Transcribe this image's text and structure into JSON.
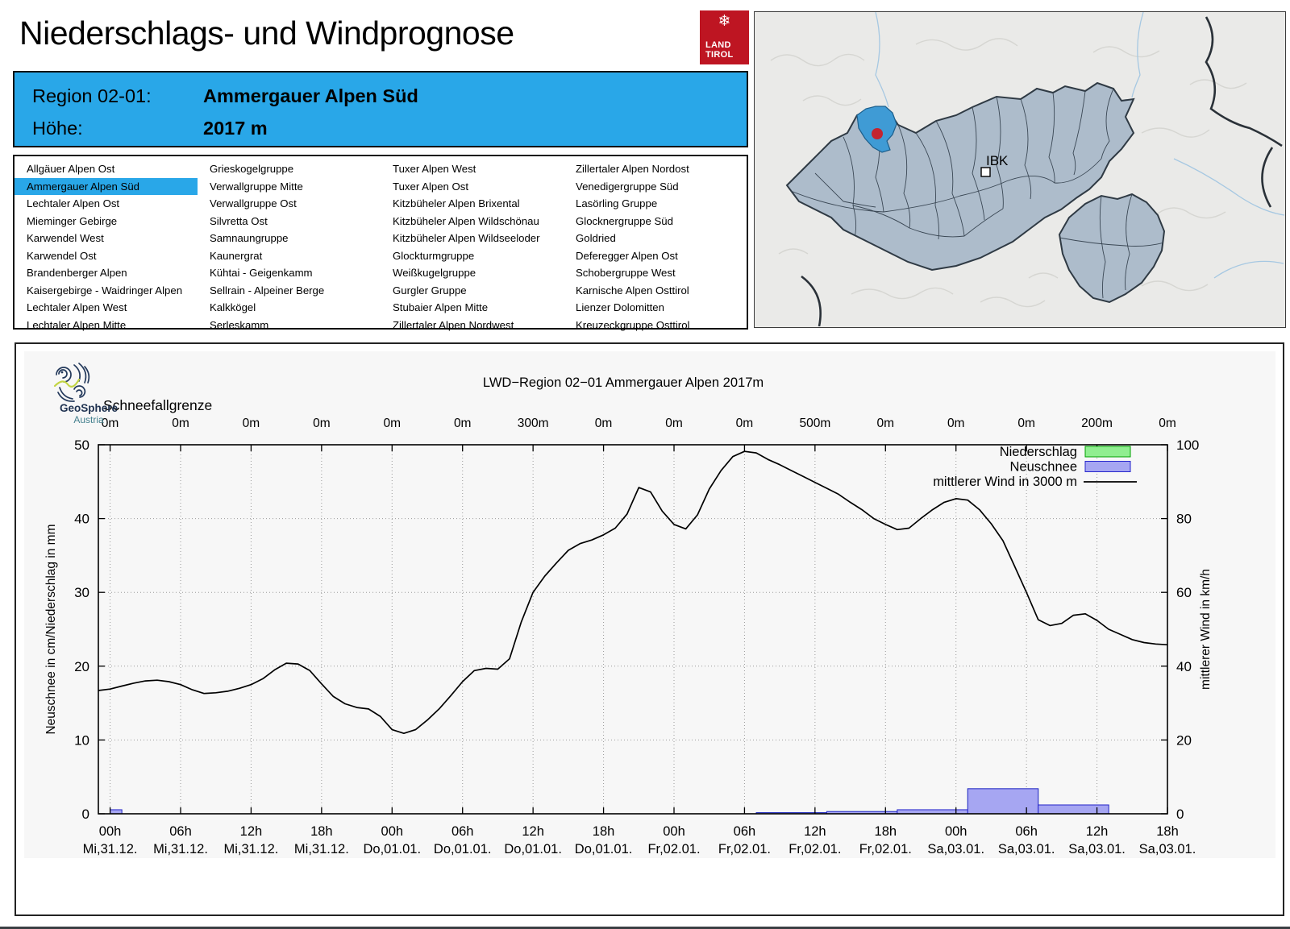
{
  "page": {
    "title": "Niederschlags- und Windprognose"
  },
  "land_tirol_logo": {
    "line1": "LAND",
    "line2": "TIROL",
    "flake": "❄",
    "color": "#be1522"
  },
  "header": {
    "region_label": "Region 02-01:",
    "region_value": "Ammergauer Alpen Süd",
    "altitude_label": "Höhe:",
    "altitude_value": "2017 m",
    "accent_color": "#29a7e8"
  },
  "map": {
    "city_label": "IBK",
    "highlight_color": "#3f9bd5",
    "marker_color": "#c42430"
  },
  "geosphere_logo": {
    "name": "GeoSphere",
    "sub": "Austria"
  },
  "region_list": {
    "selected": "Ammergauer Alpen Süd",
    "columns": [
      [
        "Allgäuer Alpen Ost",
        "Ammergauer Alpen Süd",
        "Lechtaler Alpen Ost",
        "Mieminger Gebirge",
        "Karwendel West",
        "Karwendel Ost",
        "Brandenberger Alpen",
        "Kaisergebirge - Waidringer Alpen",
        "Lechtaler Alpen West",
        "Lechtaler Alpen Mitte"
      ],
      [
        "Grieskogelgruppe",
        "Verwallgruppe Mitte",
        "Verwallgruppe Ost",
        "Silvretta Ost",
        "Samnaungruppe",
        "Kaunergrat",
        "Kühtai - Geigenkamm",
        "Sellrain - Alpeiner Berge",
        "Kalkkögel",
        "Serleskamm"
      ],
      [
        "Tuxer Alpen West",
        "Tuxer Alpen Ost",
        "Kitzbüheler Alpen Brixental",
        "Kitzbüheler Alpen Wildschönau",
        "Kitzbüheler Alpen Wildseeloder",
        "Glockturmgruppe",
        "Weißkugelgruppe",
        "Gurgler Gruppe",
        "Stubaier Alpen Mitte",
        "Zillertaler Alpen Nordwest"
      ],
      [
        "Zillertaler Alpen Nordost",
        "Venedigergruppe Süd",
        "Lasörling Gruppe",
        "Glocknergruppe Süd",
        "Goldried",
        "Deferegger Alpen Ost",
        "Schobergruppe West",
        "Karnische Alpen Osttirol",
        "Lienzer Dolomitten",
        "Kreuzeckgruppe Osttirol"
      ]
    ]
  },
  "chart_data": {
    "type": "composite",
    "title": "LWD−Region 02−01 Ammergauer Alpen 2017m",
    "top_axis": {
      "label": "Schneefallgrenze",
      "tick_labels": [
        "0m",
        "0m",
        "0m",
        "0m",
        "0m",
        "0m",
        "300m",
        "0m",
        "0m",
        "0m",
        "500m",
        "0m",
        "0m",
        "0m",
        "200m",
        "0m"
      ]
    },
    "x_axis": {
      "hour_labels": [
        "00h",
        "06h",
        "12h",
        "18h",
        "00h",
        "06h",
        "12h",
        "18h",
        "00h",
        "06h",
        "12h",
        "18h",
        "00h",
        "06h",
        "12h",
        "18h"
      ],
      "date_labels": [
        "Mi,31.12.",
        "Mi,31.12.",
        "Mi,31.12.",
        "Mi,31.12.",
        "Do,01.01.",
        "Do,01.01.",
        "Do,01.01.",
        "Do,01.01.",
        "Fr,02.01.",
        "Fr,02.01.",
        "Fr,02.01.",
        "Fr,02.01.",
        "Sa,03.01.",
        "Sa,03.01.",
        "Sa,03.01.",
        "Sa,03.01."
      ],
      "tick_hours": [
        0,
        6,
        12,
        18,
        24,
        30,
        36,
        42,
        48,
        54,
        60,
        66,
        72,
        78,
        84,
        90
      ]
    },
    "x_domain_hours": [
      -1,
      90
    ],
    "y_left": {
      "label": "Neuschnee in cm/Niederschlag in mm",
      "min": 0,
      "max": 50,
      "ticks": [
        0,
        10,
        20,
        30,
        40,
        50
      ]
    },
    "y_right": {
      "label": "mittlerer Wind in km/h",
      "min": 0,
      "max": 100,
      "ticks": [
        0,
        20,
        40,
        60,
        80,
        100
      ]
    },
    "legend": [
      {
        "label": "Niederschlag",
        "type": "box",
        "fill": "#90ee90",
        "stroke": "#00a000"
      },
      {
        "label": "Neuschnee",
        "type": "box",
        "fill": "#a6a6f2",
        "stroke": "#2525cc"
      },
      {
        "label": "mittlerer Wind in 3000 m",
        "type": "line",
        "stroke": "#000000"
      }
    ],
    "niederschlag_mm_segments": [
      {
        "from": 0,
        "to": 1,
        "value": 0.55
      },
      {
        "from": 55,
        "to": 61,
        "value": 0.15
      },
      {
        "from": 61,
        "to": 67,
        "value": 0.3
      },
      {
        "from": 67,
        "to": 73,
        "value": 0.55
      },
      {
        "from": 73,
        "to": 79,
        "value": 3.4
      },
      {
        "from": 79,
        "to": 85,
        "value": 1.2
      }
    ],
    "neuschnee_cm_segments": [
      {
        "from": 0,
        "to": 1,
        "value": 0.55
      },
      {
        "from": 55,
        "to": 61,
        "value": 0.15
      },
      {
        "from": 61,
        "to": 67,
        "value": 0.3
      },
      {
        "from": 67,
        "to": 73,
        "value": 0.55
      },
      {
        "from": 73,
        "to": 79,
        "value": 3.4
      },
      {
        "from": 79,
        "to": 85,
        "value": 1.2
      }
    ],
    "wind_kmh_points": [
      [
        -1,
        33.4
      ],
      [
        0,
        33.8
      ],
      [
        1,
        34.6
      ],
      [
        2,
        35.4
      ],
      [
        3,
        36.0
      ],
      [
        4,
        36.2
      ],
      [
        5,
        35.8
      ],
      [
        6,
        35.0
      ],
      [
        7,
        33.6
      ],
      [
        8,
        32.6
      ],
      [
        9,
        32.8
      ],
      [
        10,
        33.2
      ],
      [
        11,
        34.0
      ],
      [
        12,
        35.0
      ],
      [
        13,
        36.6
      ],
      [
        14,
        39.0
      ],
      [
        15,
        40.8
      ],
      [
        16,
        40.6
      ],
      [
        17,
        38.8
      ],
      [
        18,
        35.2
      ],
      [
        19,
        31.8
      ],
      [
        20,
        29.8
      ],
      [
        21,
        28.8
      ],
      [
        22,
        28.4
      ],
      [
        23,
        26.4
      ],
      [
        24,
        22.8
      ],
      [
        25,
        21.8
      ],
      [
        26,
        22.8
      ],
      [
        27,
        25.4
      ],
      [
        28,
        28.4
      ],
      [
        29,
        32.0
      ],
      [
        30,
        35.8
      ],
      [
        31,
        38.8
      ],
      [
        32,
        39.4
      ],
      [
        33,
        39.2
      ],
      [
        34,
        42.0
      ],
      [
        35,
        52.0
      ],
      [
        36,
        60.0
      ],
      [
        37,
        64.4
      ],
      [
        38,
        68.0
      ],
      [
        39,
        71.4
      ],
      [
        40,
        73.2
      ],
      [
        41,
        74.2
      ],
      [
        42,
        75.6
      ],
      [
        43,
        77.4
      ],
      [
        44,
        81.2
      ],
      [
        45,
        88.4
      ],
      [
        46,
        87.2
      ],
      [
        47,
        82.0
      ],
      [
        48,
        78.4
      ],
      [
        49,
        77.2
      ],
      [
        50,
        81.0
      ],
      [
        51,
        88.0
      ],
      [
        52,
        93.0
      ],
      [
        53,
        96.8
      ],
      [
        54,
        98.2
      ],
      [
        55,
        97.8
      ],
      [
        56,
        96.0
      ],
      [
        57,
        94.6
      ],
      [
        58,
        93.0
      ],
      [
        59,
        91.4
      ],
      [
        60,
        89.8
      ],
      [
        61,
        88.2
      ],
      [
        62,
        86.6
      ],
      [
        63,
        84.4
      ],
      [
        64,
        82.4
      ],
      [
        65,
        80.0
      ],
      [
        66,
        78.4
      ],
      [
        67,
        77.0
      ],
      [
        68,
        77.4
      ],
      [
        69,
        80.0
      ],
      [
        70,
        82.4
      ],
      [
        71,
        84.4
      ],
      [
        72,
        85.4
      ],
      [
        73,
        85.0
      ],
      [
        74,
        82.4
      ],
      [
        75,
        78.6
      ],
      [
        76,
        74.0
      ],
      [
        77,
        67.0
      ],
      [
        78,
        60.0
      ],
      [
        79,
        52.6
      ],
      [
        80,
        51.0
      ],
      [
        81,
        51.6
      ],
      [
        82,
        53.8
      ],
      [
        83,
        54.2
      ],
      [
        84,
        52.4
      ],
      [
        85,
        50.0
      ],
      [
        86,
        48.6
      ],
      [
        87,
        47.2
      ],
      [
        88,
        46.4
      ],
      [
        89,
        46.0
      ],
      [
        90,
        45.8
      ]
    ]
  }
}
